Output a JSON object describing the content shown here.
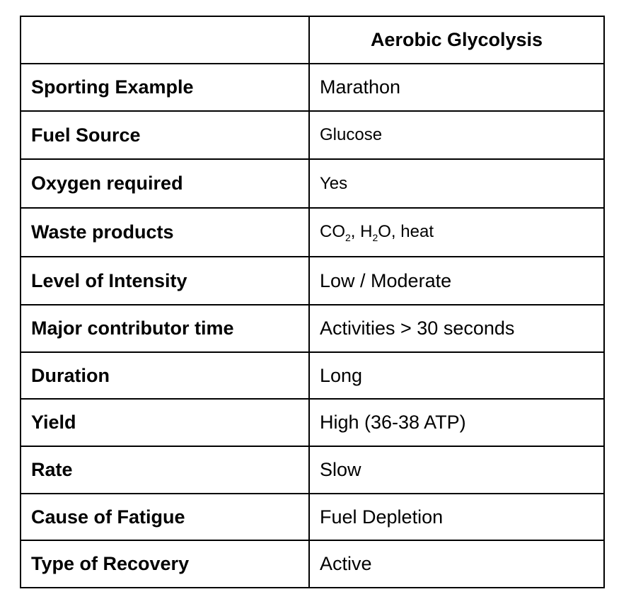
{
  "header": {
    "empty": "",
    "column": "Aerobic Glycolysis"
  },
  "rows": [
    {
      "label": "Sporting Example",
      "value": "Marathon"
    },
    {
      "label": "Fuel Source",
      "value": "Glucose"
    },
    {
      "label": "Oxygen required",
      "value": "Yes"
    },
    {
      "label": "Waste products",
      "value_parts": [
        "CO",
        "2",
        ", H",
        "2",
        "O, heat"
      ]
    },
    {
      "label": "Level of Intensity",
      "value": "Low / Moderate"
    },
    {
      "label": "Major contributor time",
      "value": "Activities > 30 seconds"
    },
    {
      "label": "Duration",
      "value": "Long"
    },
    {
      "label": "Yield",
      "value": "High (36-38 ATP)"
    },
    {
      "label": "Rate",
      "value": "Slow"
    },
    {
      "label": "Cause of Fatigue",
      "value": "Fuel Depletion"
    },
    {
      "label": "Type of Recovery",
      "value": "Active"
    }
  ]
}
